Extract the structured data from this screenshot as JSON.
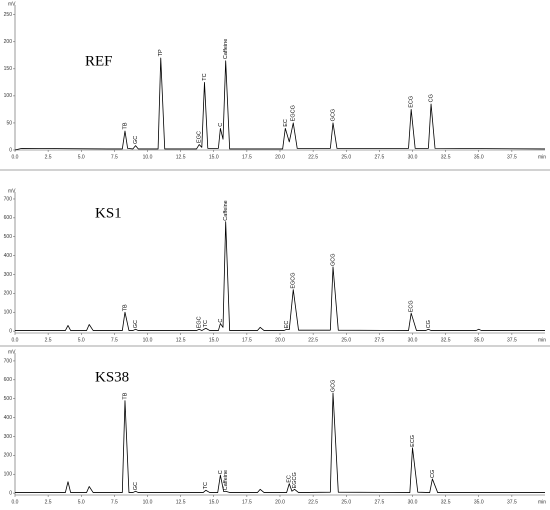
{
  "chart_data": [
    {
      "type": "line",
      "title": "REF",
      "ylabel": "mV",
      "xlabel": "min",
      "x": [
        0,
        0.5,
        7.0,
        8.1,
        8.3,
        8.5,
        8.9,
        9.1,
        9.3,
        10.8,
        11.0,
        11.3,
        13.7,
        13.9,
        14.1,
        14.3,
        14.55,
        15.35,
        15.5,
        15.7,
        15.9,
        16.2,
        20.2,
        20.4,
        20.7,
        21.0,
        21.3,
        23.8,
        24.0,
        24.3,
        29.7,
        29.9,
        30.2,
        31.2,
        31.4,
        31.7,
        40
      ],
      "values": [
        0,
        3,
        2,
        2,
        35,
        3,
        2,
        8,
        2,
        2,
        170,
        2,
        2,
        10,
        5,
        125,
        3,
        3,
        40,
        20,
        165,
        2,
        2,
        40,
        15,
        50,
        3,
        3,
        50,
        3,
        3,
        75,
        3,
        3,
        85,
        3,
        2
      ],
      "color": "#000000",
      "xlim": [
        0,
        40
      ],
      "ylim": [
        0,
        268
      ],
      "xticks": [
        {
          "value": 0,
          "label": "0.0"
        },
        2.5,
        {
          "value": 5,
          "label": "5.0"
        },
        7.5,
        {
          "value": 10,
          "label": "10.0"
        },
        12.5,
        {
          "value": 15,
          "label": "15.0"
        },
        17.5,
        {
          "value": 20,
          "label": "20.0"
        },
        22.5,
        {
          "value": 25,
          "label": "25.0"
        },
        27.5,
        {
          "value": 30,
          "label": "30.0"
        },
        32.5,
        {
          "value": 35,
          "label": "35.0"
        },
        37.5
      ],
      "yticks": [
        0,
        50,
        100,
        150,
        200,
        250
      ],
      "annotations": [
        {
          "text": "TB",
          "x": 8.3,
          "y": 38
        },
        {
          "text": "GC",
          "x": 9.1,
          "y": 11
        },
        {
          "text": "TP",
          "x": 11.0,
          "y": 173
        },
        {
          "text": "EGC",
          "x": 13.9,
          "y": 13
        },
        {
          "text": "TC",
          "x": 14.3,
          "y": 128
        },
        {
          "text": "C",
          "x": 15.5,
          "y": 43
        },
        {
          "text": "Caffeine",
          "x": 15.9,
          "y": 168
        },
        {
          "text": "EC",
          "x": 20.4,
          "y": 43
        },
        {
          "text": "EGCG",
          "x": 21.0,
          "y": 53
        },
        {
          "text": "GCG",
          "x": 24.0,
          "y": 53
        },
        {
          "text": "ECG",
          "x": 29.9,
          "y": 78
        },
        {
          "text": "CG",
          "x": 31.4,
          "y": 88
        }
      ]
    },
    {
      "type": "line",
      "title": "KS1",
      "ylabel": "mV",
      "xlabel": "min",
      "x": [
        0,
        3.8,
        4.0,
        4.2,
        5.4,
        5.6,
        5.9,
        8.1,
        8.3,
        8.6,
        8.9,
        9.1,
        9.3,
        13.7,
        13.9,
        14.1,
        14.4,
        14.7,
        15.35,
        15.5,
        15.7,
        15.9,
        16.2,
        18.3,
        18.5,
        18.8,
        20.3,
        20.5,
        20.7,
        21.0,
        21.4,
        23.8,
        24.0,
        24.4,
        29.7,
        29.9,
        30.3,
        31.0,
        31.2,
        31.4,
        34.8,
        35.0,
        35.2,
        40
      ],
      "values": [
        3,
        3,
        30,
        3,
        3,
        35,
        3,
        3,
        100,
        3,
        3,
        10,
        3,
        3,
        10,
        3,
        15,
        3,
        3,
        40,
        20,
        580,
        3,
        3,
        20,
        3,
        3,
        10,
        8,
        220,
        5,
        5,
        340,
        5,
        3,
        95,
        3,
        3,
        10,
        3,
        3,
        10,
        3,
        3
      ],
      "color": "#000000",
      "xlim": [
        0,
        40
      ],
      "ylim": [
        -10,
        737
      ],
      "xticks": [
        {
          "value": 0,
          "label": "0.0"
        },
        2.5,
        {
          "value": 5,
          "label": "5.0"
        },
        7.5,
        {
          "value": 10,
          "label": "10.0"
        },
        12.5,
        {
          "value": 15,
          "label": "15.0"
        },
        17.5,
        {
          "value": 20,
          "label": "20.0"
        },
        22.5,
        {
          "value": 25,
          "label": "25.0"
        },
        27.5,
        {
          "value": 30,
          "label": "30.0"
        },
        32.5,
        {
          "value": 35,
          "label": "35.0"
        },
        37.5
      ],
      "yticks": [
        0,
        100,
        200,
        300,
        400,
        500,
        600,
        700
      ],
      "annotations": [
        {
          "text": "TB",
          "x": 8.3,
          "y": 105
        },
        {
          "text": "GC",
          "x": 9.1,
          "y": 15
        },
        {
          "text": "EGC",
          "x": 13.9,
          "y": 15
        },
        {
          "text": "TC",
          "x": 14.4,
          "y": 20
        },
        {
          "text": "C",
          "x": 15.5,
          "y": 45
        },
        {
          "text": "Caffeine",
          "x": 15.9,
          "y": 585
        },
        {
          "text": "EC",
          "x": 20.5,
          "y": 15
        },
        {
          "text": "EGCG",
          "x": 21.0,
          "y": 225
        },
        {
          "text": "GCG",
          "x": 24.0,
          "y": 345
        },
        {
          "text": "ECG",
          "x": 29.9,
          "y": 100
        },
        {
          "text": "CG",
          "x": 31.2,
          "y": 15
        }
      ]
    },
    {
      "type": "line",
      "title": "KS38",
      "ylabel": "mV",
      "xlabel": "min",
      "x": [
        0,
        3.8,
        4.0,
        4.2,
        5.4,
        5.6,
        5.9,
        8.1,
        8.3,
        8.6,
        8.9,
        9.1,
        9.3,
        14.2,
        14.4,
        14.7,
        15.3,
        15.5,
        15.75,
        15.9,
        16.2,
        18.3,
        18.5,
        18.8,
        20.5,
        20.7,
        20.9,
        21.1,
        21.4,
        23.8,
        24.0,
        24.4,
        29.8,
        30.0,
        30.4,
        31.3,
        31.5,
        31.9,
        40
      ],
      "values": [
        3,
        3,
        60,
        3,
        3,
        35,
        3,
        3,
        490,
        3,
        3,
        10,
        3,
        3,
        15,
        3,
        3,
        95,
        8,
        10,
        3,
        3,
        20,
        3,
        3,
        50,
        10,
        20,
        3,
        5,
        530,
        5,
        3,
        240,
        5,
        3,
        75,
        3,
        3
      ],
      "color": "#000000",
      "xlim": [
        0,
        40
      ],
      "ylim": [
        -10,
        742
      ],
      "xticks": [
        {
          "value": 0,
          "label": "0.0"
        },
        2.5,
        {
          "value": 5,
          "label": "5.0"
        },
        7.5,
        {
          "value": 10,
          "label": "10.0"
        },
        12.5,
        {
          "value": 15,
          "label": "15.0"
        },
        17.5,
        {
          "value": 20,
          "label": "20.0"
        },
        22.5,
        {
          "value": 25,
          "label": "25.0"
        },
        27.5,
        {
          "value": 30,
          "label": "30.0"
        },
        32.5,
        {
          "value": 35,
          "label": "35.0"
        },
        37.5
      ],
      "yticks": [
        0,
        100,
        200,
        300,
        400,
        500,
        600,
        700
      ],
      "annotations": [
        {
          "text": "TB",
          "x": 8.3,
          "y": 495
        },
        {
          "text": "GC",
          "x": 9.1,
          "y": 15
        },
        {
          "text": "TC",
          "x": 14.4,
          "y": 20
        },
        {
          "text": "C",
          "x": 15.5,
          "y": 100
        },
        {
          "text": "Caffeine",
          "x": 15.9,
          "y": 15
        },
        {
          "text": "EC",
          "x": 20.7,
          "y": 55
        },
        {
          "text": "EGCG",
          "x": 21.1,
          "y": 25
        },
        {
          "text": "GCG",
          "x": 24.0,
          "y": 535
        },
        {
          "text": "ECG",
          "x": 30.0,
          "y": 245
        },
        {
          "text": "CG",
          "x": 31.5,
          "y": 80
        }
      ]
    }
  ]
}
